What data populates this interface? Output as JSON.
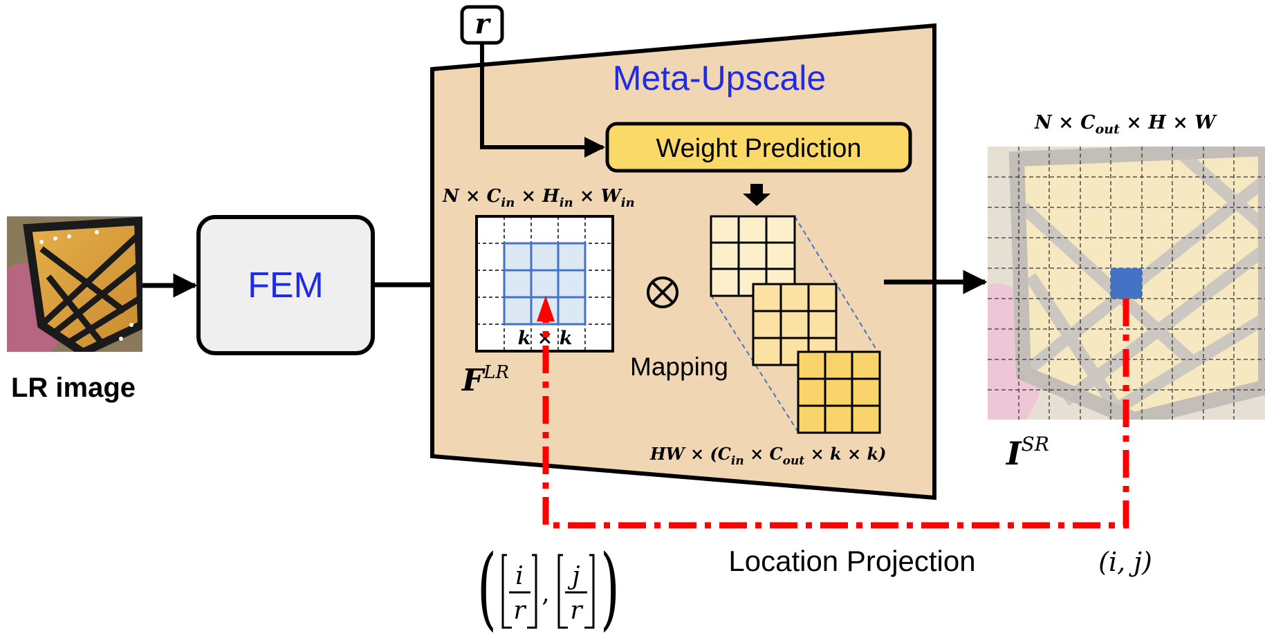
{
  "lr_image": {
    "label": "LR image"
  },
  "fem": {
    "label": "FEM"
  },
  "scale_input": {
    "label": "r"
  },
  "meta_upscale": {
    "title": "Meta-Upscale",
    "weight_prediction": "Weight Prediction",
    "mapping": "Mapping",
    "operator": "⊗"
  },
  "feature": {
    "shape": {
      "base": "N × C",
      "sub1": "in",
      "mid1": " × H",
      "sub2": "in",
      "mid2": " × W",
      "sub3": "in"
    },
    "symbol": "F",
    "symbol_sup": "LR",
    "kernel_label": "k × k"
  },
  "weights": {
    "shape": {
      "pre": "HW × (C",
      "sub1": "in",
      "mid": " × C",
      "sub2": "out",
      "post": " × k × k)"
    }
  },
  "output": {
    "shape": {
      "pre": "N × C",
      "sub": "out",
      "post": " × H × W"
    },
    "symbol": "I",
    "symbol_sup": "SR"
  },
  "location_projection": {
    "label": "Location Projection",
    "coord": "(i, j)",
    "formula": {
      "i": "i",
      "j": "j",
      "r1": "r",
      "r2": "r",
      "sep": ","
    }
  },
  "colors": {
    "meta_fill": "#f1d6b3",
    "title_blue": "#1f2be6",
    "weight_box": "#fbd968",
    "kernel_blue": "#4472c4",
    "kernel_fill": "#dde8f5",
    "red_path": "#ff0000",
    "fem_fill": "#efefef",
    "out_pixel": "#4472c4"
  }
}
